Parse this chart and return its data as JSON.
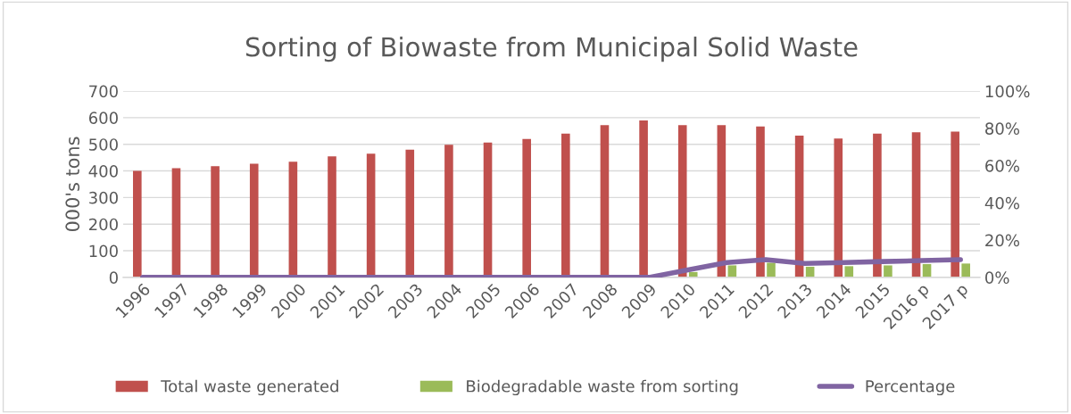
{
  "chart_data": {
    "type": "bar",
    "title": "Sorting of Biowaste from Municipal Solid Waste",
    "ylabel": "000's tons",
    "categories": [
      "1996",
      "1997",
      "1998",
      "1999",
      "2000",
      "2001",
      "2002",
      "2003",
      "2004",
      "2005",
      "2006",
      "2007",
      "2008",
      "2009",
      "2010",
      "2011",
      "2012",
      "2013",
      "2014",
      "2015",
      "2016 p",
      "2017 p"
    ],
    "series": [
      {
        "name": "Total waste generated",
        "color": "#c0504d",
        "values": [
          400,
          410,
          418,
          427,
          435,
          455,
          465,
          480,
          498,
          507,
          520,
          540,
          572,
          590,
          572,
          572,
          567,
          533,
          522,
          540,
          545,
          548
        ]
      },
      {
        "name": "Biodegradable waste from sorting",
        "color": "#9bbb59",
        "values": [
          0,
          0,
          0,
          0,
          0,
          0,
          0,
          0,
          0,
          0,
          0,
          0,
          0,
          0,
          20,
          45,
          55,
          40,
          42,
          45,
          50,
          52
        ]
      },
      {
        "name": "Percentage",
        "type": "line",
        "axis": "y2",
        "color": "#8064a2",
        "values": [
          0,
          0,
          0,
          0,
          0,
          0,
          0,
          0,
          0,
          0,
          0,
          0,
          0,
          0,
          0.04,
          0.08,
          0.095,
          0.075,
          0.08,
          0.085,
          0.09,
          0.095
        ]
      }
    ],
    "ylim": [
      0,
      700
    ],
    "yticks": [
      0,
      100,
      200,
      300,
      400,
      500,
      600,
      700
    ],
    "y2lim": [
      0,
      1
    ],
    "y2ticks": [
      {
        "value": 0,
        "label": "0%"
      },
      {
        "value": 0.2,
        "label": "20%"
      },
      {
        "value": 0.4,
        "label": "40%"
      },
      {
        "value": 0.6,
        "label": "60%"
      },
      {
        "value": 0.8,
        "label": "80%"
      },
      {
        "value": 1,
        "label": "100%"
      }
    ],
    "grid": "y",
    "legend": "bottom",
    "marker": "none"
  }
}
